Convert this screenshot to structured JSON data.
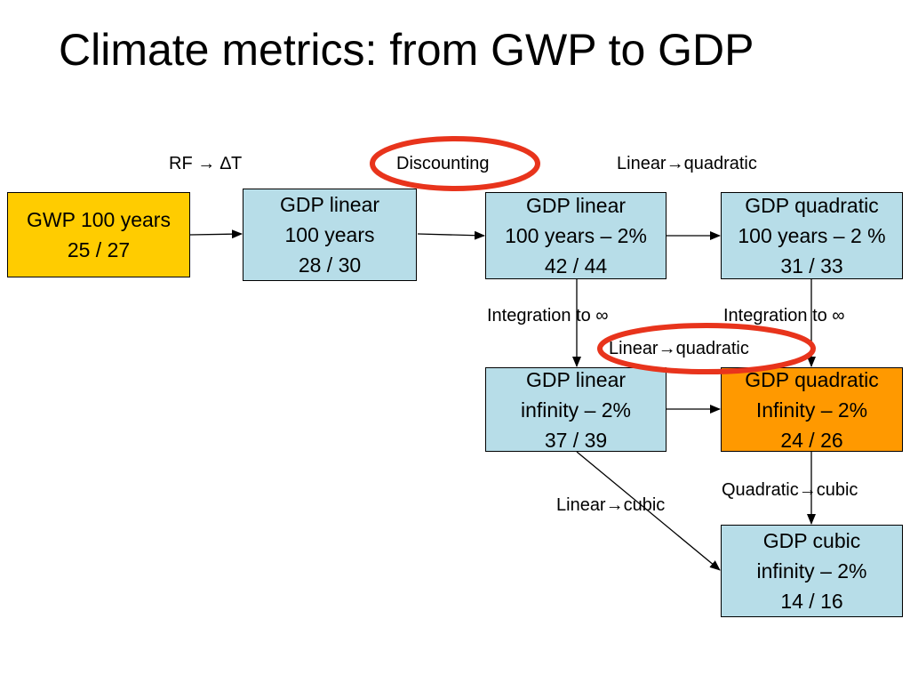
{
  "title": "Climate metrics: from GWP to GDP",
  "colors": {
    "box_blue": "#b7dde8",
    "box_yellow": "#ffcc00",
    "box_orange": "#ff9900",
    "highlight_ring": "#e8341c"
  },
  "boxes": {
    "gwp_100": {
      "line1": "GWP 100 years",
      "line2": "25 / 27"
    },
    "gdp_linear_100": {
      "line1": "GDP linear",
      "line2": "100 years",
      "line3": "28 / 30"
    },
    "gdp_linear_100_2": {
      "line1": "GDP linear",
      "line2": "100 years – 2%",
      "line3": "42 / 44"
    },
    "gdp_quadratic_100_2": {
      "line1": "GDP quadratic",
      "line2": "100 years – 2 %",
      "line3": "31 / 33"
    },
    "gdp_linear_inf_2": {
      "line1": "GDP linear",
      "line2": "infinity – 2%",
      "line3": "37 / 39"
    },
    "gdp_quadratic_inf_2": {
      "line1": "GDP quadratic",
      "line2": "Infinity – 2%",
      "line3": "24 / 26"
    },
    "gdp_cubic_inf_2": {
      "line1": "GDP cubic",
      "line2": "infinity – 2%",
      "line3": "14 / 16"
    }
  },
  "labels": {
    "rf_to_dt": "RF → ∆T",
    "discounting": "Discounting",
    "linear_quadratic_top": "Linear→quadratic",
    "integration_left": "Integration to ∞",
    "integration_right": "Integration to ∞",
    "linear_quadratic_mid": "Linear→quadratic",
    "quadratic_cubic": "Quadratic→cubic",
    "linear_cubic": "Linear→cubic"
  }
}
